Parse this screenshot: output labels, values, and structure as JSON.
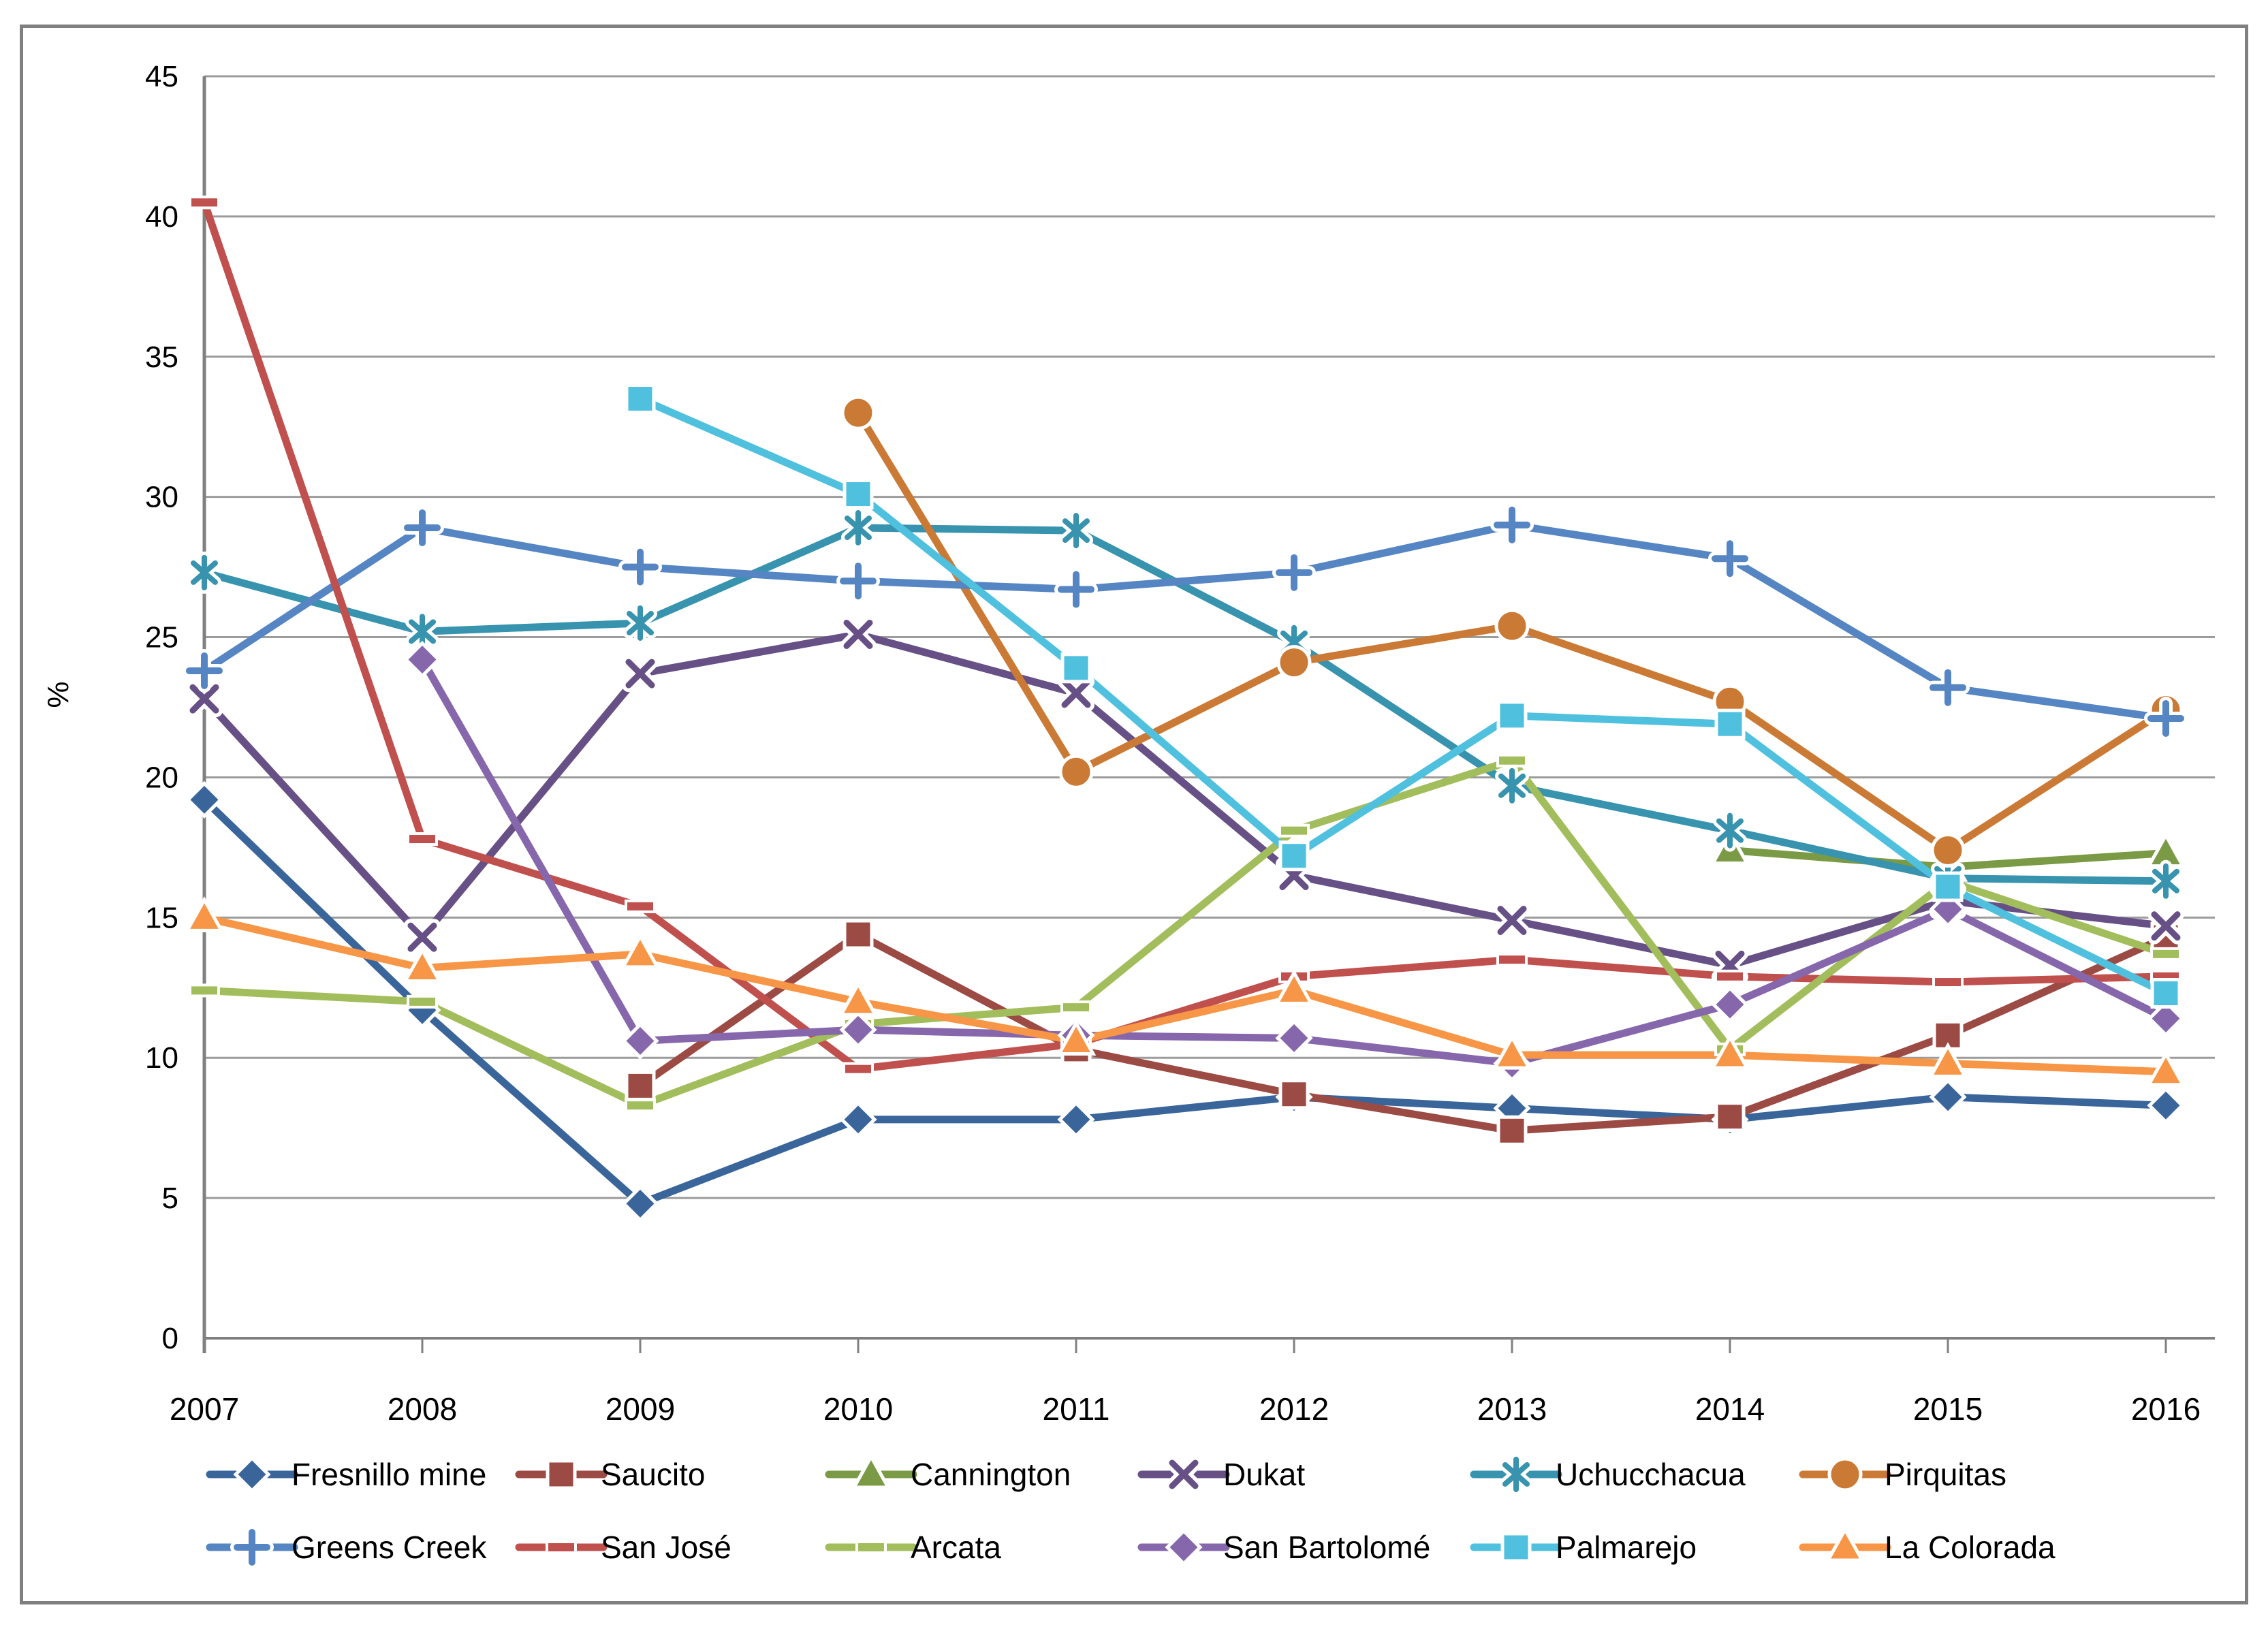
{
  "chart_data": {
    "type": "line",
    "title": "",
    "xlabel": "",
    "ylabel": "%",
    "ylim": [
      0,
      45
    ],
    "ytick_step": 5,
    "grid": true,
    "legend_position": "bottom",
    "categories": [
      "2007",
      "2008",
      "2009",
      "2010",
      "2011",
      "2012",
      "2013",
      "2014",
      "2015",
      "2016"
    ],
    "series": [
      {
        "name": "Fresnillo mine",
        "color": "#3A659B",
        "marker": "diamond",
        "values": [
          19.2,
          11.7,
          4.8,
          7.8,
          7.8,
          8.6,
          8.2,
          7.8,
          8.6,
          8.3
        ]
      },
      {
        "name": "Saucito",
        "color": "#9C4A44",
        "marker": "square",
        "values": [
          null,
          null,
          9.0,
          14.4,
          10.3,
          8.7,
          7.4,
          7.9,
          10.8,
          14.3
        ]
      },
      {
        "name": "Cannington",
        "color": "#7A9A46",
        "marker": "triangle",
        "values": [
          null,
          null,
          null,
          null,
          null,
          null,
          null,
          17.4,
          16.8,
          17.3
        ]
      },
      {
        "name": "Dukat",
        "color": "#665086",
        "marker": "x",
        "values": [
          22.8,
          14.3,
          23.7,
          25.1,
          23.0,
          16.5,
          14.9,
          13.3,
          15.6,
          14.7
        ]
      },
      {
        "name": "Uchucchacua",
        "color": "#3793AE",
        "marker": "star",
        "values": [
          27.3,
          25.2,
          25.5,
          28.9,
          28.8,
          24.8,
          19.7,
          18.1,
          16.4,
          16.3
        ]
      },
      {
        "name": "Pirquitas",
        "color": "#CB7A35",
        "marker": "circle",
        "values": [
          null,
          null,
          null,
          33.0,
          20.2,
          24.1,
          25.4,
          22.7,
          17.4,
          22.4
        ]
      },
      {
        "name": "Greens Creek",
        "color": "#5585C2",
        "marker": "plus",
        "values": [
          23.8,
          28.9,
          27.5,
          27.0,
          26.7,
          27.3,
          29.0,
          27.8,
          23.2,
          22.1
        ]
      },
      {
        "name": "San José",
        "color": "#C0504D",
        "marker": "dash",
        "values": [
          40.5,
          17.8,
          15.4,
          9.6,
          10.5,
          12.9,
          13.5,
          12.9,
          12.7,
          12.9
        ]
      },
      {
        "name": "Arcata",
        "color": "#A2BD5B",
        "marker": "dash",
        "values": [
          12.4,
          12.0,
          8.3,
          11.2,
          11.8,
          18.1,
          20.6,
          10.3,
          16.3,
          13.7
        ]
      },
      {
        "name": "San Bartolomé",
        "color": "#8667AC",
        "marker": "diamond",
        "values": [
          null,
          24.2,
          10.6,
          11.0,
          10.8,
          10.7,
          9.8,
          11.9,
          15.3,
          11.4
        ]
      },
      {
        "name": "Palmarejo",
        "color": "#4FC0DE",
        "marker": "square",
        "values": [
          null,
          null,
          33.5,
          30.1,
          23.9,
          17.2,
          22.2,
          21.9,
          16.1,
          12.3
        ]
      },
      {
        "name": "La Colorada",
        "color": "#F79646",
        "marker": "triangle",
        "values": [
          15.0,
          13.2,
          13.7,
          12.0,
          10.6,
          12.4,
          10.1,
          10.1,
          9.8,
          9.5
        ]
      }
    ]
  }
}
